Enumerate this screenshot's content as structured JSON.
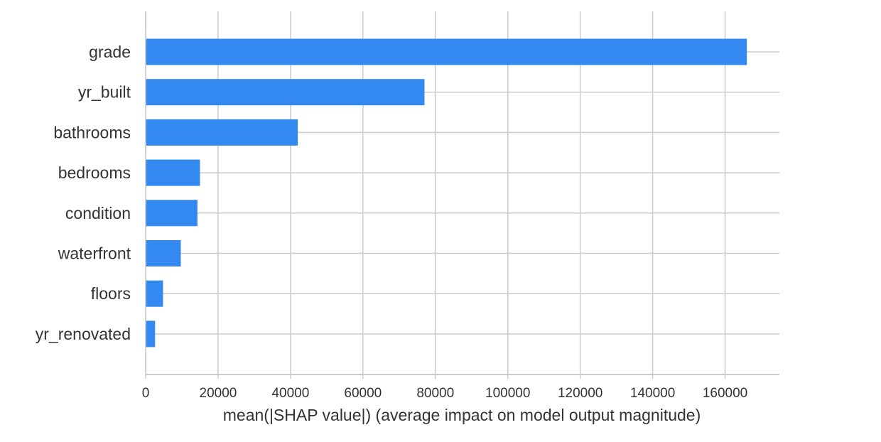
{
  "chart_data": {
    "type": "bar",
    "orientation": "horizontal",
    "categories": [
      "grade",
      "yr_built",
      "bathrooms",
      "bedrooms",
      "condition",
      "waterfront",
      "floors",
      "yr_renovated"
    ],
    "values": [
      166000,
      77000,
      42000,
      15000,
      14300,
      9700,
      4800,
      2600
    ],
    "xlabel": "mean(|SHAP value|) (average impact on model output magnitude)",
    "ylabel": "",
    "xlim": [
      0,
      175000
    ],
    "xticks": [
      0,
      20000,
      40000,
      60000,
      80000,
      100000,
      120000,
      140000,
      160000
    ],
    "xtick_labels": [
      "0",
      "20000",
      "40000",
      "60000",
      "80000",
      "100000",
      "120000",
      "140000",
      "160000"
    ],
    "grid": true,
    "bar_color": "#3489f0"
  }
}
